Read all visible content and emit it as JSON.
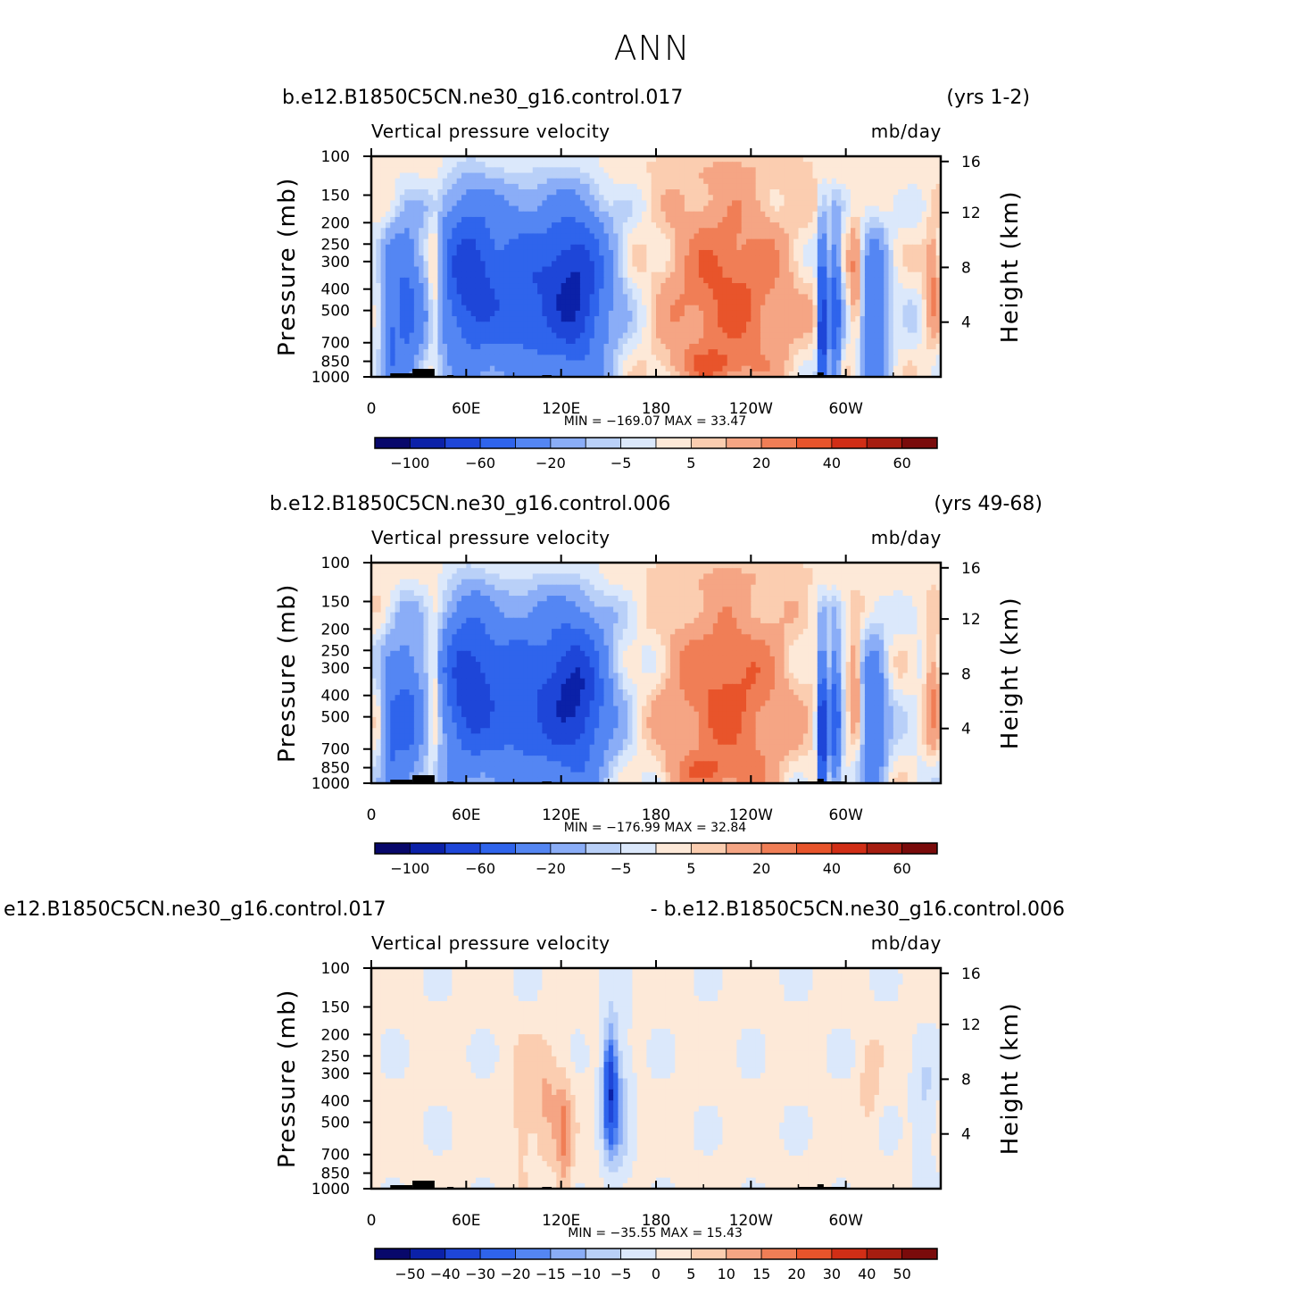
{
  "page": {
    "title": "ANN"
  },
  "colors": {
    "frame": "#000000",
    "topography": "#000000",
    "palette": [
      "#08086b",
      "#0b21a8",
      "#1e46d8",
      "#2f64ec",
      "#5486f3",
      "#8aadf7",
      "#b9d0f8",
      "#dbe8fb",
      "#fde9d8",
      "#fbcdb0",
      "#f5a584",
      "#f07e56",
      "#e8542b",
      "#d12e16",
      "#a61d10",
      "#7a0b0b"
    ]
  },
  "chart_data": [
    {
      "type": "heatmap",
      "case": "b.e12.B1850C5CN.ne30_g16.control.017",
      "years": "(yrs 1-2)",
      "variable": "Vertical pressure velocity",
      "units": "mb/day",
      "ylabel": "Pressure (mb)",
      "ylabel_right": "Height (km)",
      "x_ticks": [
        "0",
        "60E",
        "120E",
        "180",
        "120W",
        "60W"
      ],
      "x_range": [
        0,
        360
      ],
      "y_ticks": [
        "100",
        "150",
        "200",
        "250",
        "300",
        "400",
        "500",
        "700",
        "850",
        "1000"
      ],
      "y_range": [
        1000,
        100
      ],
      "height_ticks": [
        "16",
        "12",
        "8",
        "4"
      ],
      "min_max": "MIN = −169.07   MAX =   33.47",
      "min": -169.07,
      "max": 33.47,
      "colorbar_labels": [
        "−100",
        "−60",
        "−20",
        "−5",
        "5",
        "20",
        "40",
        "60"
      ],
      "colorbar_levels": [
        -120,
        -100,
        -80,
        -60,
        -40,
        -20,
        -10,
        -5,
        0,
        5,
        10,
        20,
        30,
        40,
        50,
        60,
        70
      ]
    },
    {
      "type": "heatmap",
      "case": "b.e12.B1850C5CN.ne30_g16.control.006",
      "years": "(yrs 49-68)",
      "variable": "Vertical pressure velocity",
      "units": "mb/day",
      "ylabel": "Pressure (mb)",
      "ylabel_right": "Height (km)",
      "x_ticks": [
        "0",
        "60E",
        "120E",
        "180",
        "120W",
        "60W"
      ],
      "x_range": [
        0,
        360
      ],
      "y_ticks": [
        "100",
        "150",
        "200",
        "250",
        "300",
        "400",
        "500",
        "700",
        "850",
        "1000"
      ],
      "y_range": [
        1000,
        100
      ],
      "height_ticks": [
        "16",
        "12",
        "8",
        "4"
      ],
      "min_max": "MIN = −176.99   MAX =   32.84",
      "min": -176.99,
      "max": 32.84,
      "colorbar_labels": [
        "−100",
        "−60",
        "−20",
        "−5",
        "5",
        "20",
        "40",
        "60"
      ],
      "colorbar_levels": [
        -120,
        -100,
        -80,
        -60,
        -40,
        -20,
        -10,
        -5,
        0,
        5,
        10,
        20,
        30,
        40,
        50,
        60,
        70
      ]
    },
    {
      "type": "heatmap",
      "case": "e12.B1850C5CN.ne30_g16.control.017",
      "years": "- b.e12.B1850C5CN.ne30_g16.control.006",
      "variable": "Vertical pressure velocity",
      "units": "mb/day",
      "ylabel": "Pressure (mb)",
      "ylabel_right": "Height (km)",
      "x_ticks": [
        "0",
        "60E",
        "120E",
        "180",
        "120W",
        "60W"
      ],
      "x_range": [
        0,
        360
      ],
      "y_ticks": [
        "100",
        "150",
        "200",
        "250",
        "300",
        "400",
        "500",
        "700",
        "850",
        "1000"
      ],
      "y_range": [
        1000,
        100
      ],
      "height_ticks": [
        "16",
        "12",
        "8",
        "4"
      ],
      "min_max": "MIN = −35.55   MAX =   15.43",
      "min": -35.55,
      "max": 15.43,
      "colorbar_labels": [
        "−50",
        "−40",
        "−30",
        "−20",
        "−15",
        "−10",
        "−5",
        "0",
        "5",
        "10",
        "15",
        "20",
        "30",
        "40",
        "50"
      ],
      "colorbar_levels": [
        -60,
        -50,
        -40,
        -30,
        -20,
        -15,
        -10,
        -5,
        0,
        5,
        10,
        15,
        20,
        30,
        40,
        50,
        60
      ]
    }
  ]
}
